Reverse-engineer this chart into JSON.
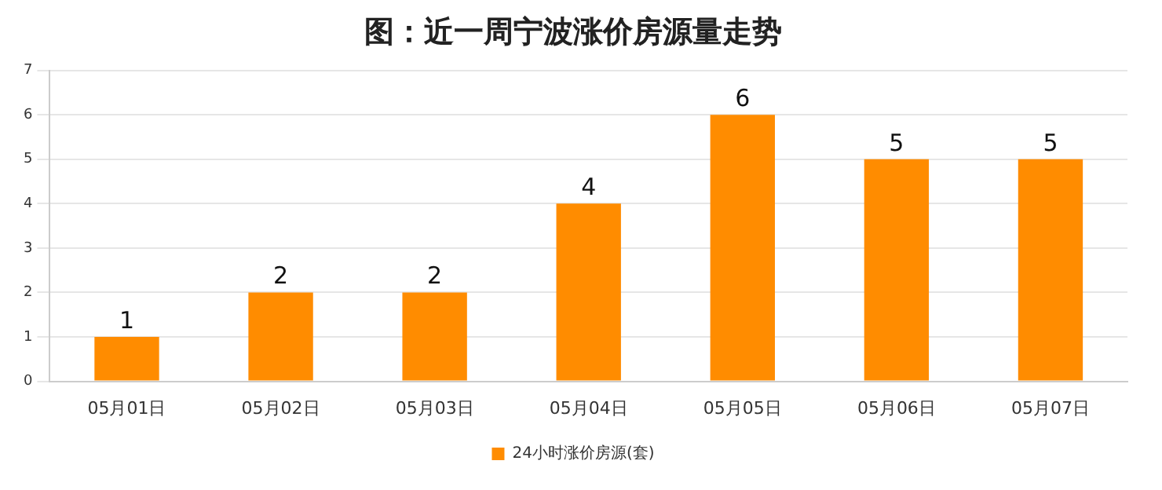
{
  "chart_data": {
    "type": "bar",
    "title": "图：近一周宁波涨价房源量走势",
    "categories": [
      "05月01日",
      "05月02日",
      "05月03日",
      "05月04日",
      "05月05日",
      "05月06日",
      "05月07日"
    ],
    "series": [
      {
        "name": "24小时涨价房源(套)",
        "color": "#ff8c00",
        "values": [
          1,
          2,
          2,
          4,
          6,
          5,
          5
        ]
      }
    ],
    "ylim": [
      0,
      7
    ],
    "yticks": [
      0,
      1,
      2,
      3,
      4,
      5,
      6,
      7
    ],
    "grid": "y",
    "legend": "bottom",
    "data_labels": true
  }
}
